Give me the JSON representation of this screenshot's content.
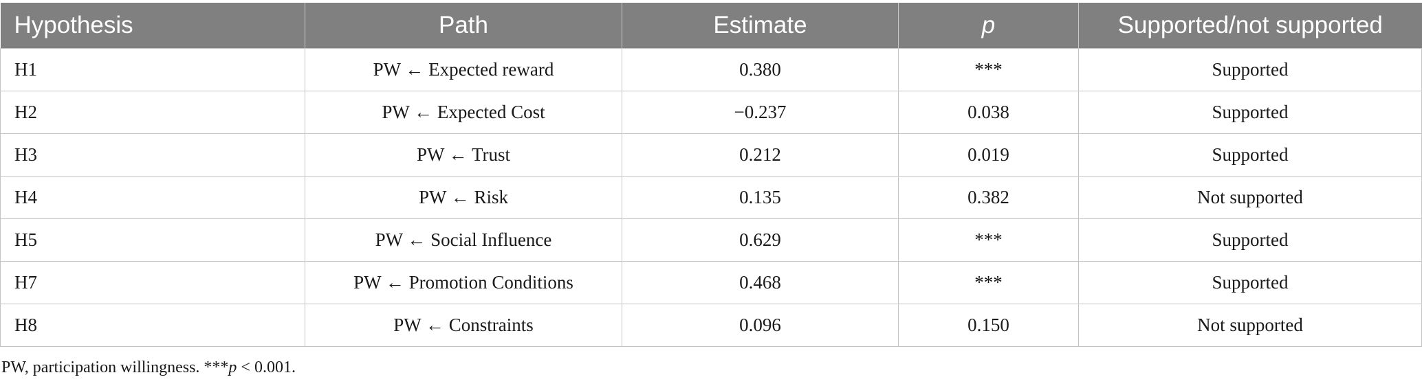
{
  "table": {
    "headers": [
      "Hypothesis",
      "Path",
      "Estimate",
      "p",
      "Supported/not supported"
    ],
    "rows": [
      [
        "H1",
        "PW ← Expected reward",
        "0.380",
        "***",
        "Supported"
      ],
      [
        "H2",
        "PW ← Expected Cost",
        "−0.237",
        "0.038",
        "Supported"
      ],
      [
        "H3",
        "PW ← Trust",
        "0.212",
        "0.019",
        "Supported"
      ],
      [
        "H4",
        "PW ← Risk",
        "0.135",
        "0.382",
        "Not supported"
      ],
      [
        "H5",
        "PW ← Social Influence",
        "0.629",
        "***",
        "Supported"
      ],
      [
        "H7",
        "PW ← Promotion Conditions",
        "0.468",
        "***",
        "Supported"
      ],
      [
        "H8",
        "PW ← Constraints",
        "0.096",
        "0.150",
        "Not supported"
      ]
    ]
  },
  "footnote": {
    "prefix": "PW, participation willingness. ***",
    "p_symbol": "p",
    "suffix": " < 0.001."
  }
}
